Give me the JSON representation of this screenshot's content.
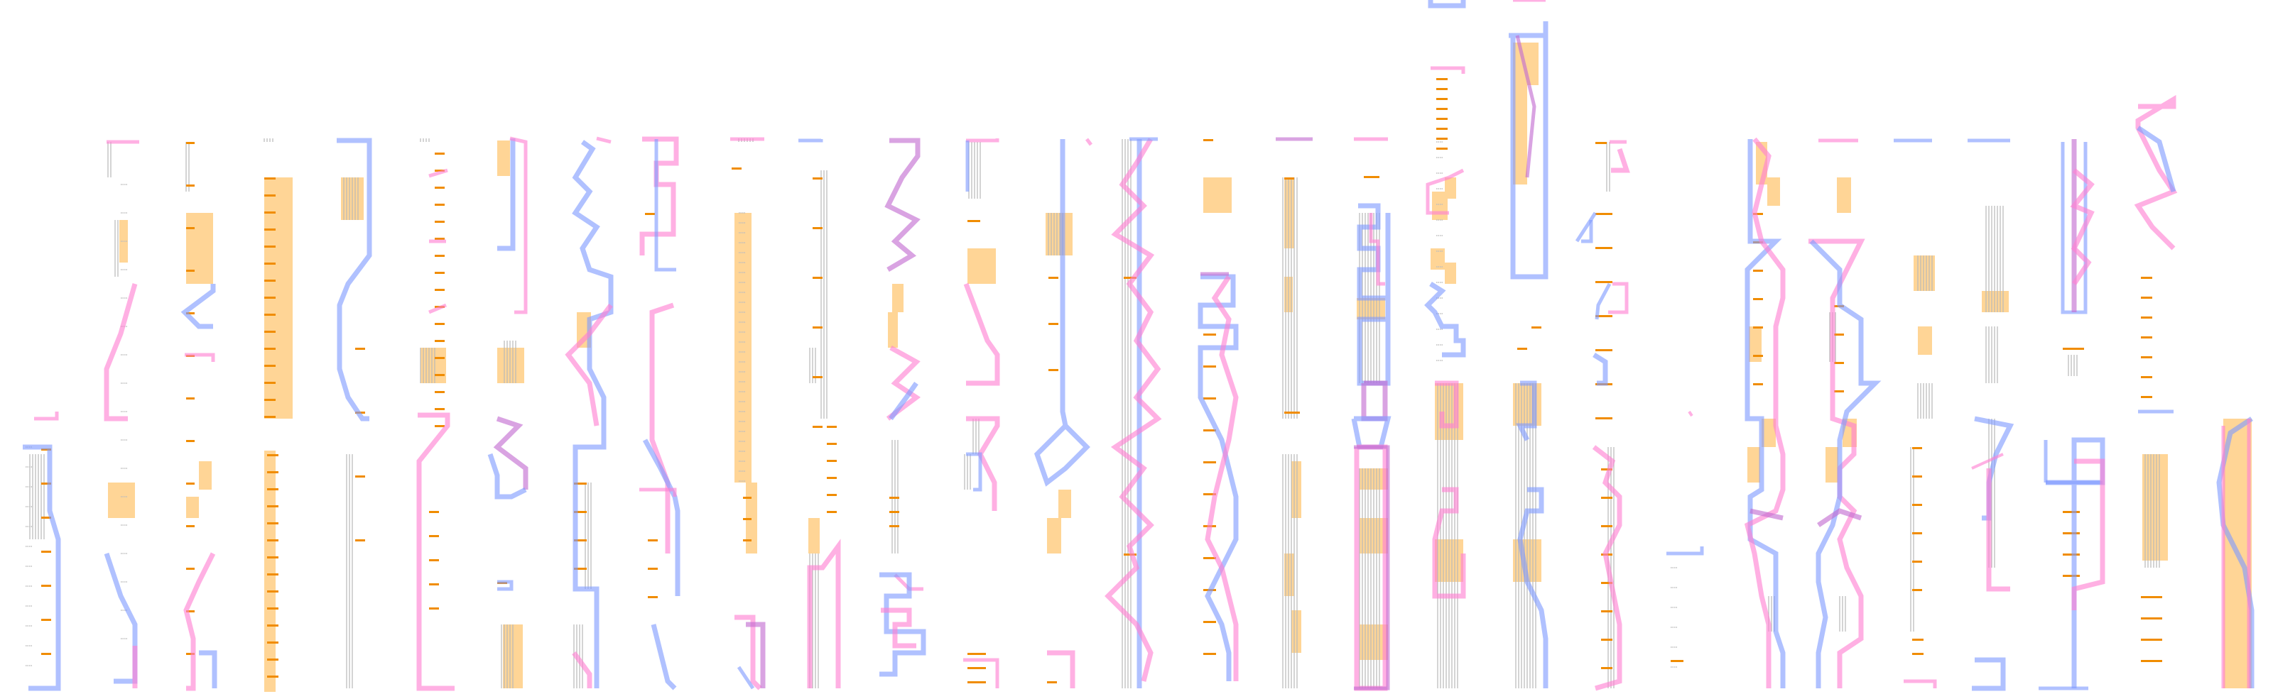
{
  "colors": {
    "blue": "#7f9bff",
    "pink": "#ff7fd2",
    "purple": "#c16bd1",
    "orange_fill": "#ffd596",
    "orange_mark": "#f08c00",
    "gray_line": "#b8b8b8"
  },
  "column_count": 31
}
